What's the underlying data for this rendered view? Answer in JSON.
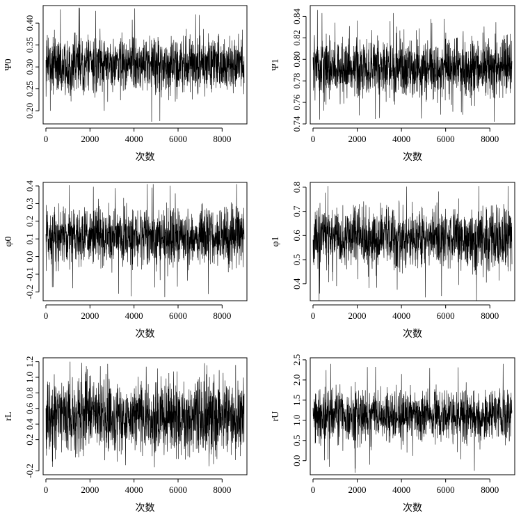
{
  "chart_data": [
    {
      "type": "line",
      "xlabel": "次数",
      "ylabel": "Ψ0",
      "xlim": [
        0,
        9000
      ],
      "ylim": [
        0.17,
        0.44
      ],
      "x_ticks": [
        0,
        2000,
        4000,
        6000,
        8000
      ],
      "y_ticks": [
        0.2,
        0.25,
        0.3,
        0.35,
        0.4
      ],
      "y_tick_labels": [
        "0.20",
        "0.25",
        "0.30",
        "0.35",
        "0.40"
      ],
      "trace": {
        "n": 9000,
        "mean": 0.305,
        "sd": 0.028,
        "min": 0.175,
        "max": 0.435,
        "spikes": [
          [
            1500,
            0.435
          ],
          [
            4800,
            0.175
          ],
          [
            6800,
            0.42
          ],
          [
            200,
            0.2
          ]
        ]
      }
    },
    {
      "type": "line",
      "xlabel": "次数",
      "ylabel": "Ψ1",
      "xlim": [
        0,
        9000
      ],
      "ylim": [
        0.74,
        0.85
      ],
      "x_ticks": [
        0,
        2000,
        4000,
        6000,
        8000
      ],
      "y_ticks": [
        0.74,
        0.76,
        0.78,
        0.8,
        0.82,
        0.84
      ],
      "y_tick_labels": [
        "0.74",
        "0.76",
        "0.78",
        "0.80",
        "0.82",
        "0.84"
      ],
      "trace": {
        "n": 9000,
        "mean": 0.792,
        "sd": 0.012,
        "min": 0.742,
        "max": 0.846,
        "spikes": [
          [
            200,
            0.846
          ],
          [
            300,
            0.744
          ],
          [
            2000,
            0.836
          ],
          [
            4900,
            0.745
          ],
          [
            2100,
            0.748
          ]
        ]
      }
    },
    {
      "type": "line",
      "xlabel": "次数",
      "ylabel": "φ0",
      "xlim": [
        0,
        9000
      ],
      "ylim": [
        -0.25,
        0.42
      ],
      "x_ticks": [
        0,
        2000,
        4000,
        6000,
        8000
      ],
      "y_ticks": [
        -0.2,
        -0.1,
        0.0,
        0.1,
        0.2,
        0.3,
        0.4
      ],
      "y_tick_labels": [
        "-0.2",
        "-0.1",
        "0.0",
        "0.1",
        "0.2",
        "0.3",
        "0.4"
      ],
      "trace": {
        "n": 9000,
        "mean": 0.11,
        "sd": 0.07,
        "min": -0.23,
        "max": 0.41,
        "spikes": [
          [
            4600,
            0.41
          ],
          [
            5400,
            -0.23
          ],
          [
            3300,
            -0.21
          ]
        ]
      }
    },
    {
      "type": "line",
      "xlabel": "次数",
      "ylabel": "φ1",
      "xlim": [
        0,
        9000
      ],
      "ylim": [
        0.33,
        0.82
      ],
      "x_ticks": [
        0,
        2000,
        4000,
        6000,
        8000
      ],
      "y_ticks": [
        0.4,
        0.5,
        0.6,
        0.7,
        0.8
      ],
      "y_tick_labels": [
        "0.4",
        "0.5",
        "0.6",
        "0.7",
        "0.8"
      ],
      "trace": {
        "n": 9000,
        "mean": 0.59,
        "sd": 0.055,
        "min": 0.33,
        "max": 0.805,
        "spikes": [
          [
            7400,
            0.33
          ],
          [
            7500,
            0.805
          ],
          [
            300,
            0.36
          ]
        ]
      }
    },
    {
      "type": "line",
      "xlabel": "次数",
      "ylabel": "rL",
      "xlim": [
        0,
        9000
      ],
      "ylim": [
        -0.25,
        1.25
      ],
      "x_ticks": [
        0,
        2000,
        4000,
        6000,
        8000
      ],
      "y_ticks": [
        -0.2,
        0.2,
        0.4,
        0.6,
        0.8,
        1.0,
        1.2
      ],
      "y_tick_labels": [
        "-0.2",
        "0.2",
        "0.4",
        "0.6",
        "0.8",
        "1.0",
        "1.2"
      ],
      "trace": {
        "n": 9000,
        "mean": 0.5,
        "sd": 0.22,
        "min": -0.18,
        "max": 1.2,
        "spikes": [
          [
            1100,
            1.2
          ],
          [
            7200,
            1.18
          ],
          [
            300,
            -0.15
          ]
        ]
      }
    },
    {
      "type": "line",
      "xlabel": "次数",
      "ylabel": "rU",
      "xlim": [
        0,
        9000
      ],
      "ylim": [
        -0.35,
        2.55
      ],
      "x_ticks": [
        0,
        2000,
        4000,
        6000,
        8000
      ],
      "y_ticks": [
        0.0,
        0.5,
        1.0,
        1.5,
        2.0,
        2.5
      ],
      "y_tick_labels": [
        "0.0",
        "0.5",
        "1.0",
        "1.5",
        "2.0",
        "2.5"
      ],
      "trace": {
        "n": 9000,
        "mean": 1.12,
        "sd": 0.28,
        "min": -0.3,
        "max": 2.4,
        "spikes": [
          [
            800,
            2.4
          ],
          [
            8600,
            2.4
          ],
          [
            1900,
            -0.3
          ],
          [
            7300,
            -0.25
          ]
        ]
      }
    }
  ]
}
